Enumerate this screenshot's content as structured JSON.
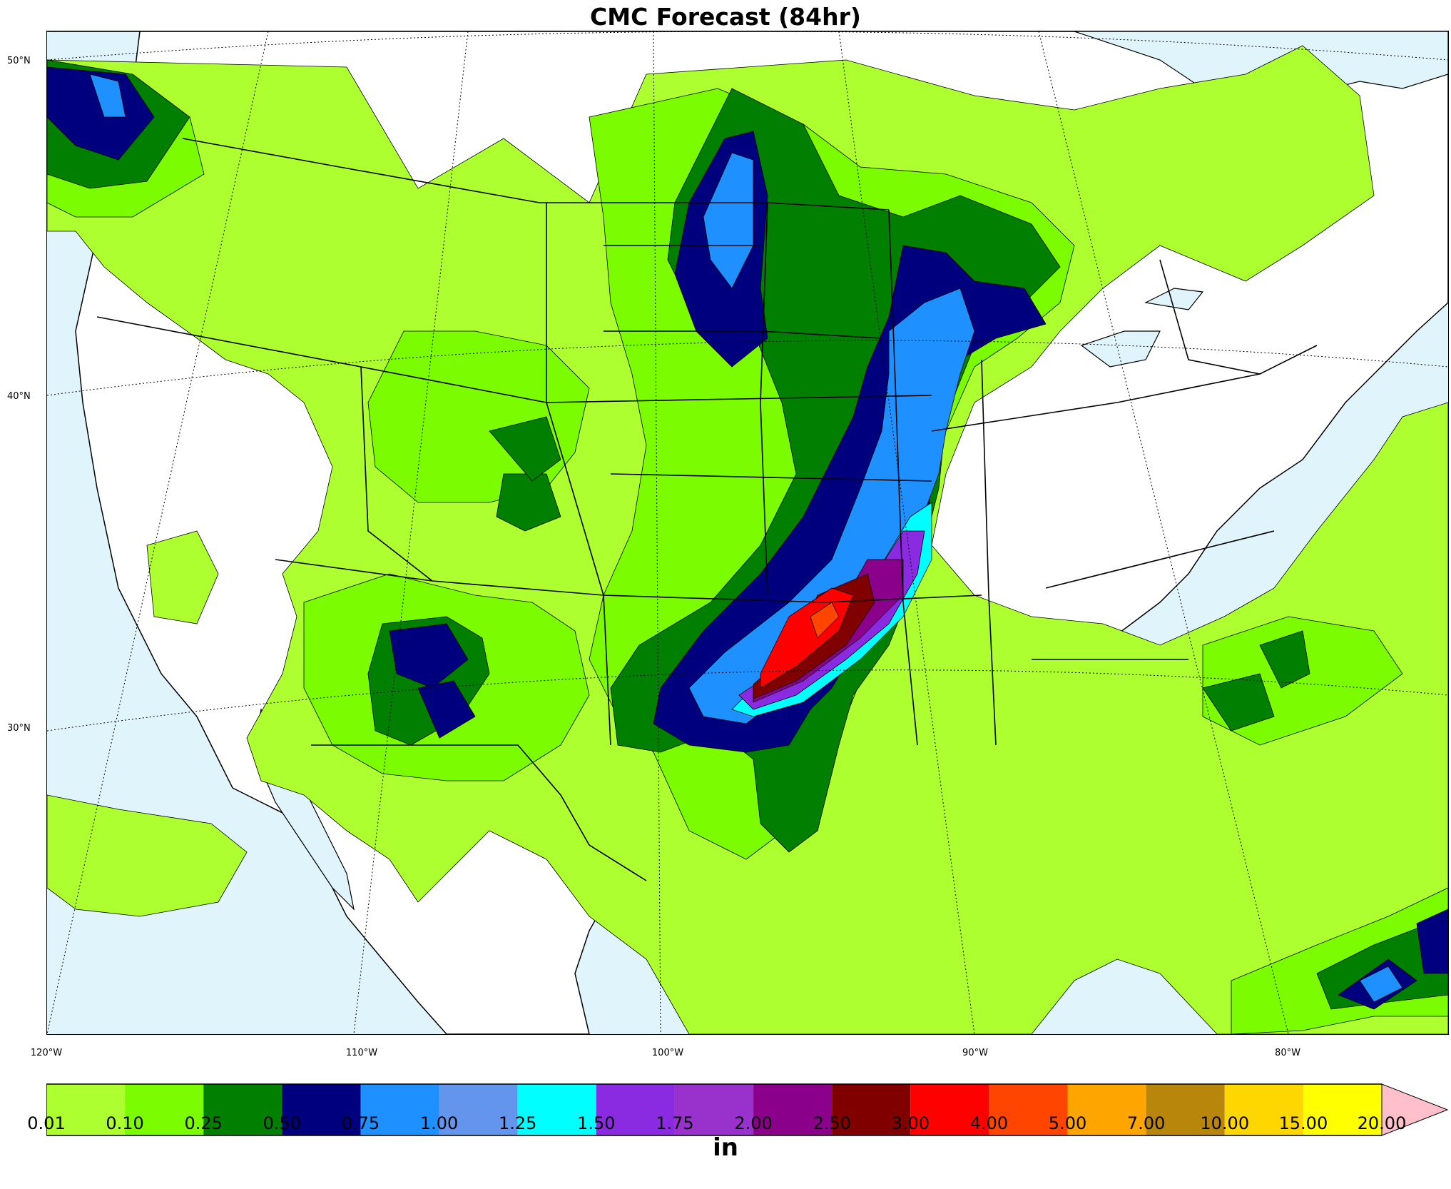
{
  "title": "CMC Forecast (84hr)",
  "map": {
    "lat_labels": [
      {
        "text": "50°N"
      },
      {
        "text": "40°N"
      },
      {
        "text": "30°N"
      }
    ],
    "lon_labels": [
      {
        "text": "120°W"
      },
      {
        "text": "110°W"
      },
      {
        "text": "100°W"
      },
      {
        "text": "90°W"
      },
      {
        "text": "80°W"
      }
    ],
    "ocean_color": "#dff4fb",
    "land_color": "#ffffff"
  },
  "colorbar": {
    "unit": "in",
    "ticks": [
      "0.01",
      "0.10",
      "0.25",
      "0.50",
      "0.75",
      "1.00",
      "1.25",
      "1.50",
      "1.75",
      "2.00",
      "2.50",
      "3.00",
      "4.00",
      "5.00",
      "7.00",
      "10.00",
      "15.00",
      "20.00"
    ],
    "colors": [
      "#adff2f",
      "#7cfc00",
      "#007f00",
      "#00007f",
      "#1e90ff",
      "#6495ed",
      "#00ffff",
      "#8a2be2",
      "#9932cc",
      "#8b008b",
      "#800000",
      "#ff0000",
      "#ff4500",
      "#ffa500",
      "#b8860b",
      "#ffd700",
      "#ffff00"
    ],
    "extend_color": "#ffc0cb"
  }
}
